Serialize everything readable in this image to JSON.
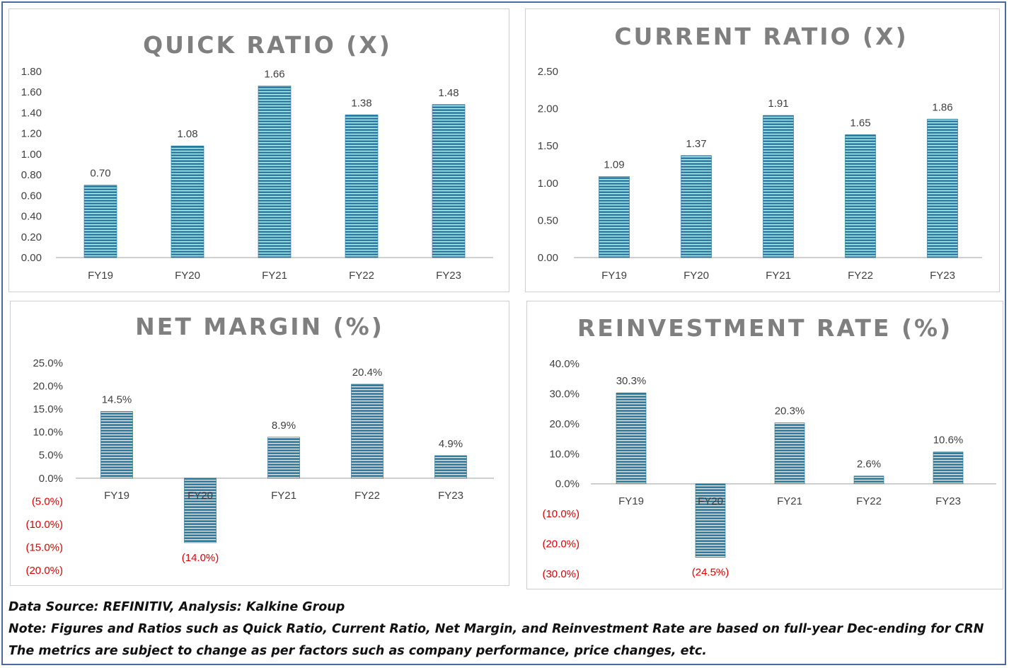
{
  "chart_data": [
    {
      "type": "bar",
      "title": "QUICK RATIO (X)",
      "categories": [
        "FY19",
        "FY20",
        "FY21",
        "FY22",
        "FY23"
      ],
      "values": [
        0.7,
        1.08,
        1.66,
        1.38,
        1.48
      ],
      "labels": [
        "0.70",
        "1.08",
        "1.66",
        "1.38",
        "1.48"
      ],
      "ylim": [
        0,
        1.8
      ],
      "yticks": [
        0,
        0.2,
        0.4,
        0.6,
        0.8,
        1.0,
        1.2,
        1.4,
        1.6,
        1.8
      ],
      "ytick_labels": [
        "0.00",
        "0.20",
        "0.40",
        "0.60",
        "0.80",
        "1.00",
        "1.20",
        "1.40",
        "1.60",
        "1.80"
      ],
      "grid": false
    },
    {
      "type": "bar",
      "title": "CURRENT RATIO (X)",
      "categories": [
        "FY19",
        "FY20",
        "FY21",
        "FY22",
        "FY23"
      ],
      "values": [
        1.09,
        1.37,
        1.91,
        1.65,
        1.86
      ],
      "labels": [
        "1.09",
        "1.37",
        "1.91",
        "1.65",
        "1.86"
      ],
      "ylim": [
        0,
        2.5
      ],
      "yticks": [
        0,
        0.5,
        1.0,
        1.5,
        2.0,
        2.5
      ],
      "ytick_labels": [
        "0.00",
        "0.50",
        "1.00",
        "1.50",
        "2.00",
        "2.50"
      ],
      "grid": false
    },
    {
      "type": "bar",
      "title": "NET MARGIN (%)",
      "categories": [
        "FY19",
        "FY20",
        "FY21",
        "FY22",
        "FY23"
      ],
      "values": [
        14.5,
        -14.0,
        8.9,
        20.4,
        4.9
      ],
      "labels": [
        "14.5%",
        "(14.0%)",
        "8.9%",
        "20.4%",
        "4.9%"
      ],
      "ylim": [
        -20,
        25
      ],
      "yticks": [
        25,
        20,
        15,
        10,
        5,
        0,
        -5,
        -10,
        -15,
        -20
      ],
      "ytick_labels": [
        "25.0%",
        "20.0%",
        "15.0%",
        "10.0%",
        "5.0%",
        "0.0%",
        "(5.0%)",
        "(10.0%)",
        "(15.0%)",
        "(20.0%)"
      ],
      "grid": false
    },
    {
      "type": "bar",
      "title": "REINVESTMENT RATE (%)",
      "categories": [
        "FY19",
        "FY20",
        "FY21",
        "FY22",
        "FY23"
      ],
      "values": [
        30.3,
        -24.5,
        20.3,
        2.6,
        10.6
      ],
      "labels": [
        "30.3%",
        "(24.5%)",
        "20.3%",
        "2.6%",
        "10.6%"
      ],
      "ylim": [
        -30,
        40
      ],
      "yticks": [
        40,
        30,
        20,
        10,
        0,
        -10,
        -20,
        -30
      ],
      "ytick_labels": [
        "40.0%",
        "30.0%",
        "20.0%",
        "10.0%",
        "0.0%",
        "(10.0%)",
        "(20.0%)",
        "(30.0%)"
      ],
      "grid": false
    }
  ],
  "colors": {
    "bar": "#2e7fa3",
    "bar_stripe": "#eaf4f8",
    "negative_text": "#e00000",
    "title": "#7f7f7f"
  },
  "footer": {
    "source": "Data Source: REFINITIV, Analysis: Kalkine Group",
    "note": "Note: Figures and Ratios such as Quick Ratio, Current Ratio, Net Margin, and Reinvestment Rate are based on full-year Dec-ending for CRN",
    "disclaimer": "The metrics are subject to change as per factors such as company performance, price changes, etc."
  }
}
